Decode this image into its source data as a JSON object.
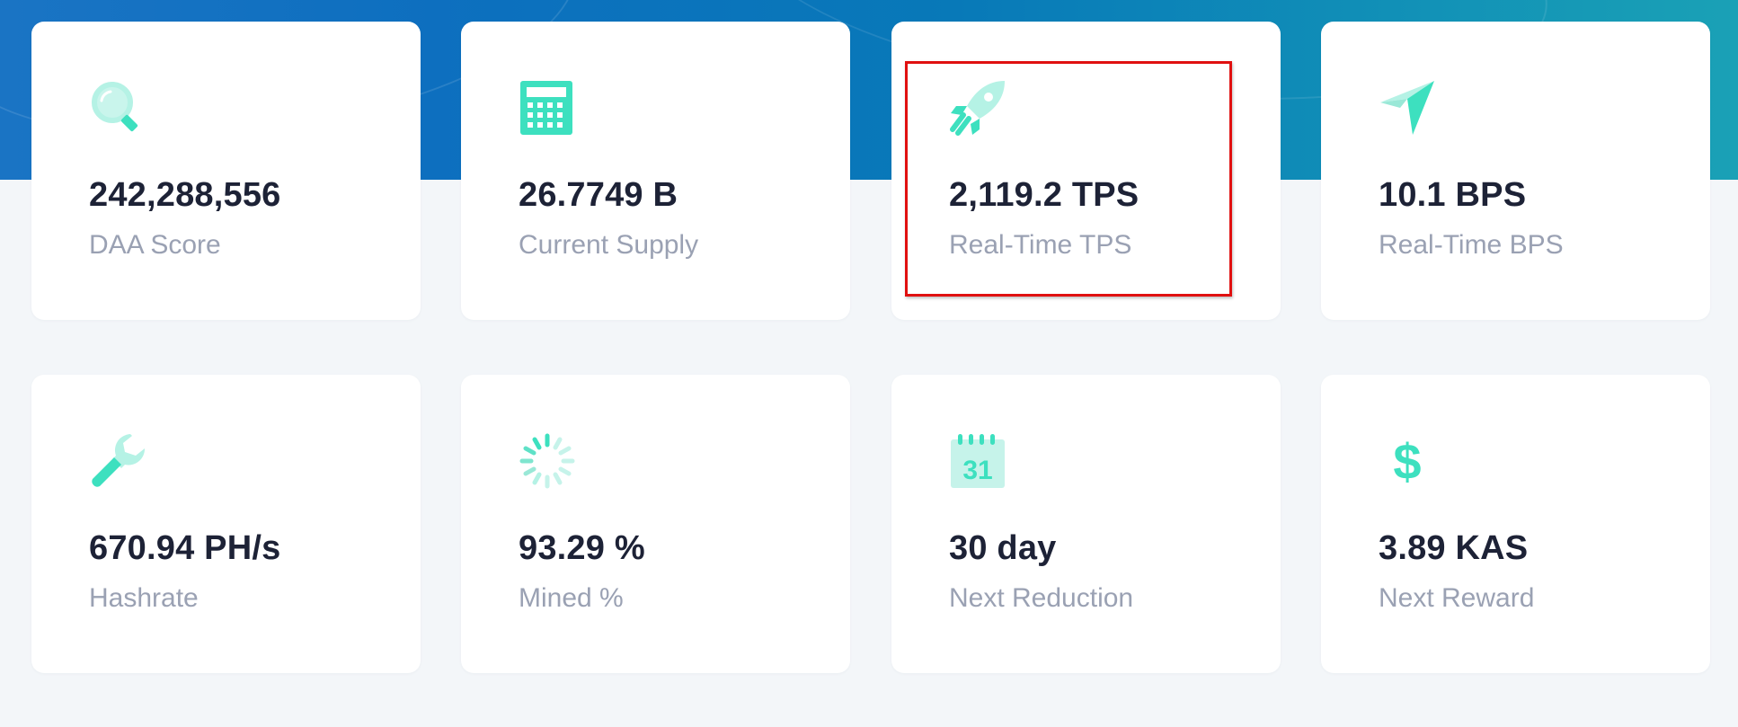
{
  "colors": {
    "accent": "#3de0bf",
    "accent_light": "#b5f2e5",
    "value_text": "#1d2236",
    "label_text": "#9aa1b3",
    "highlight": "#e01010"
  },
  "stats": [
    {
      "icon": "search-icon",
      "value": "242,288,556",
      "label": "DAA Score"
    },
    {
      "icon": "calculator-icon",
      "value": "26.7749 B",
      "label": "Current Supply"
    },
    {
      "icon": "rocket-icon",
      "value": "2,119.2 TPS",
      "label": "Real-Time TPS"
    },
    {
      "icon": "paper-plane-icon",
      "value": "10.1 BPS",
      "label": "Real-Time BPS"
    },
    {
      "icon": "wrench-icon",
      "value": "670.94 PH/s",
      "label": "Hashrate"
    },
    {
      "icon": "spinner-icon",
      "value": "93.29 %",
      "label": "Mined %"
    },
    {
      "icon": "calendar-icon",
      "value": "30 day",
      "label": "Next Reduction",
      "icon_text": "31"
    },
    {
      "icon": "dollar-icon",
      "value": "3.89 KAS",
      "label": "Next Reward",
      "icon_text": "$"
    }
  ]
}
